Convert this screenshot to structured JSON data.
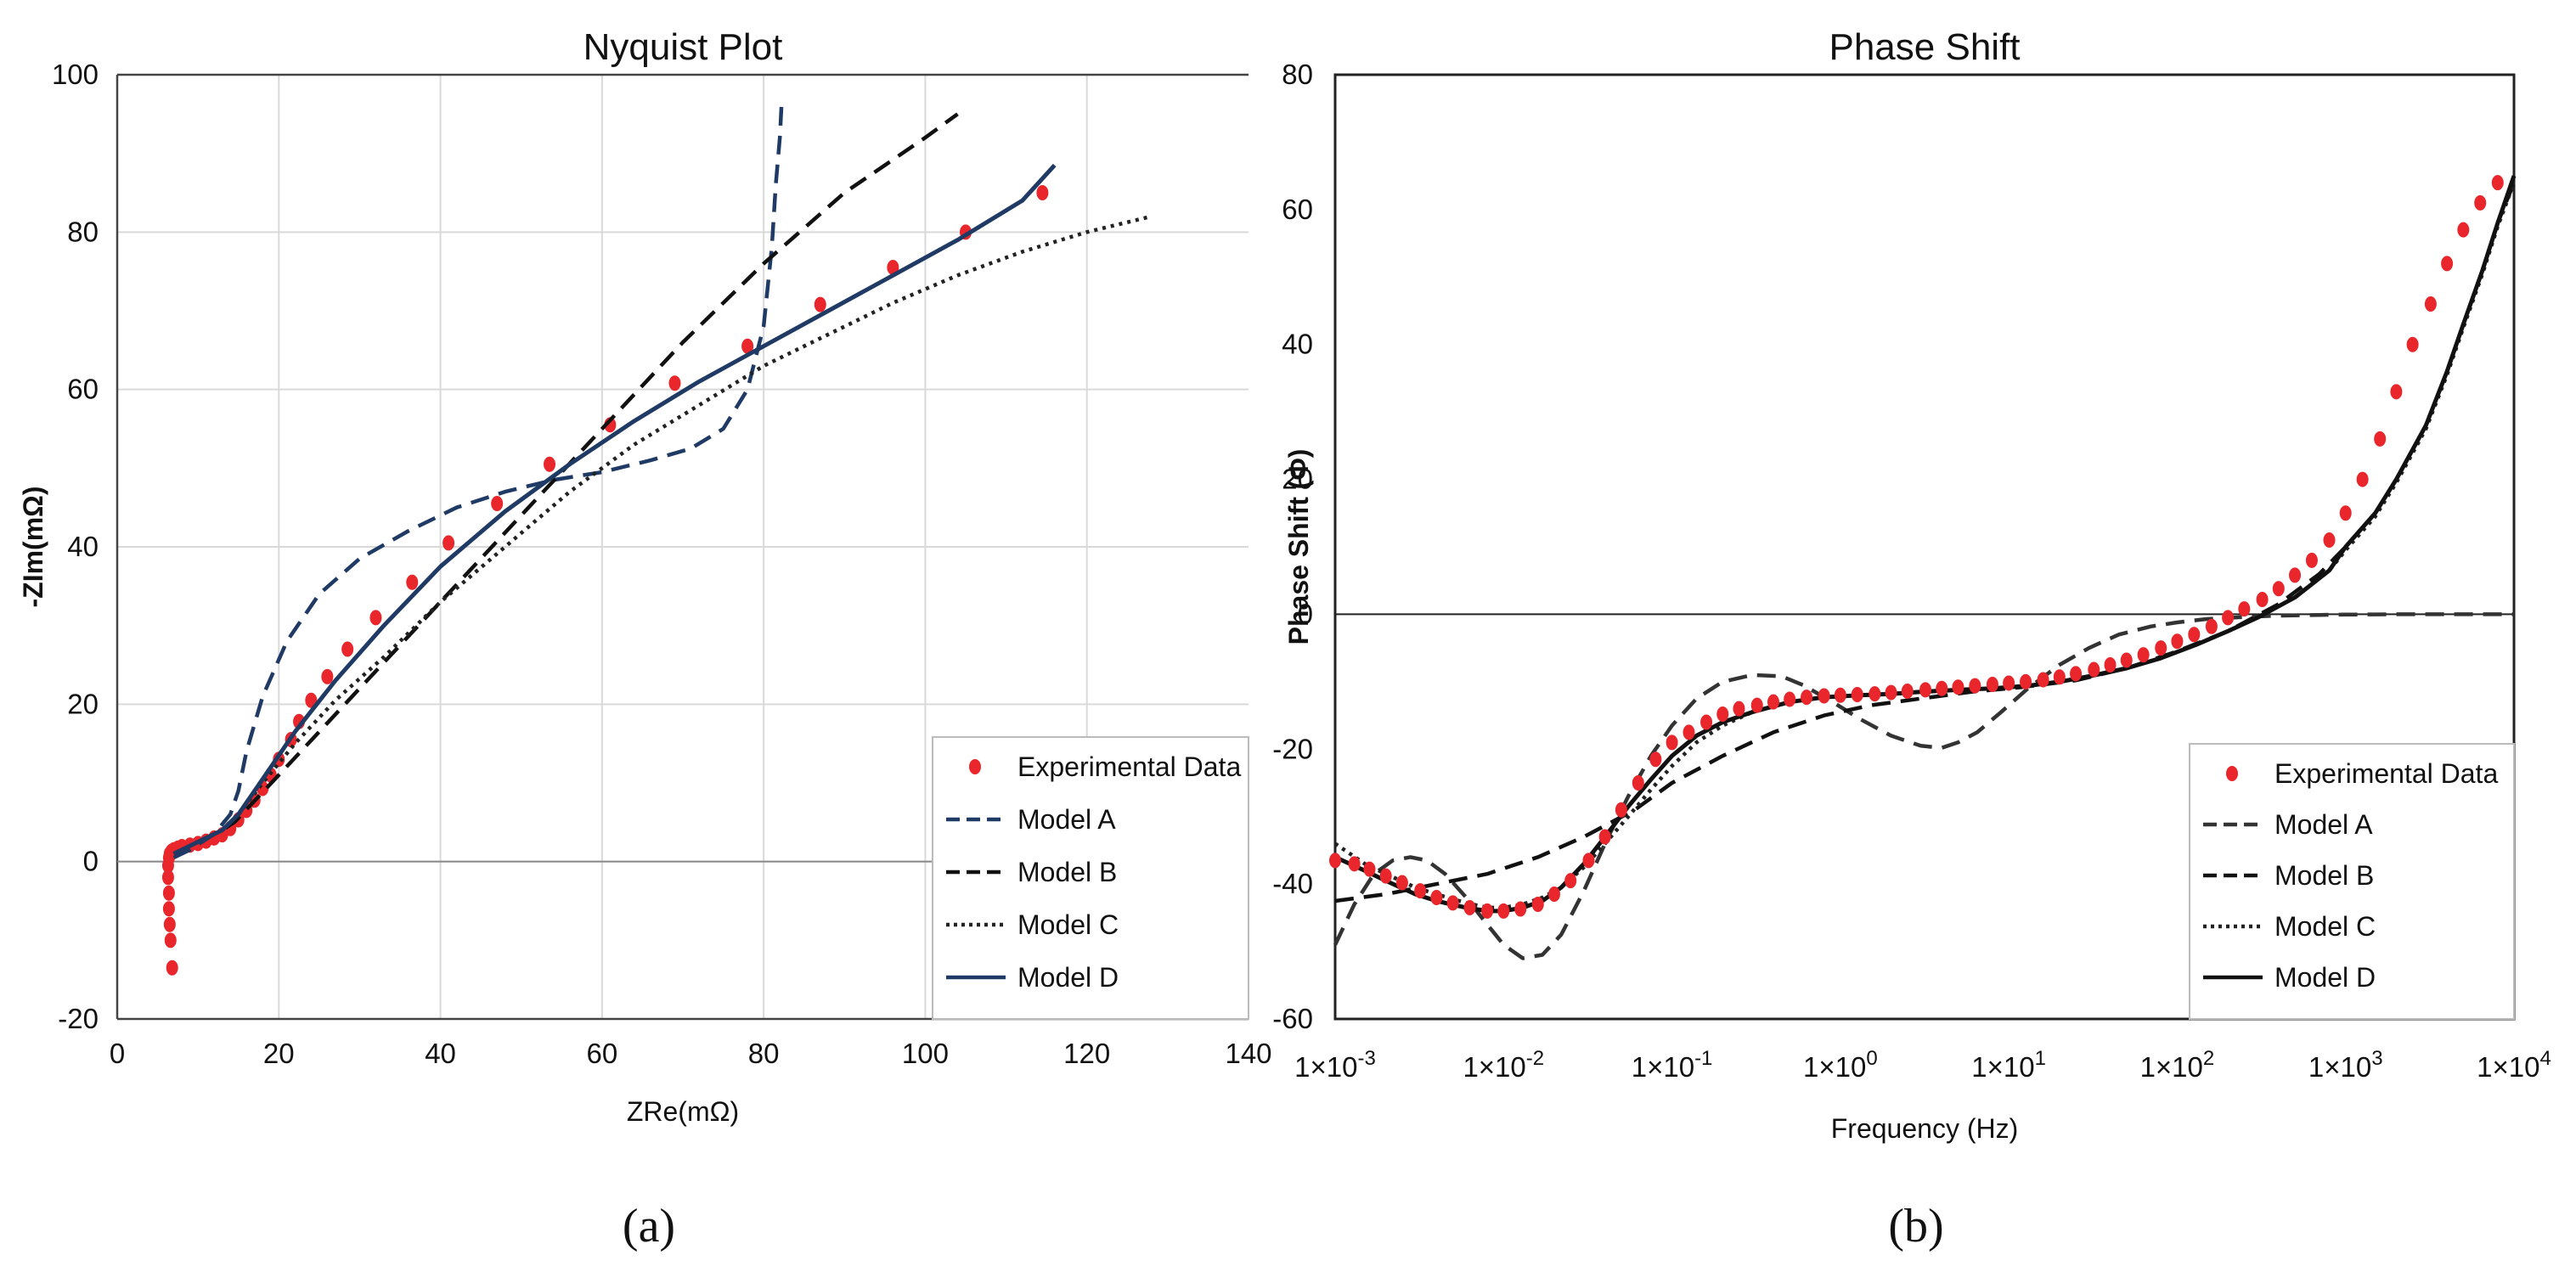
{
  "chart_data": [
    {
      "type": "scatter",
      "title": "Nyquist Plot",
      "xlabel": "ZRe(mΩ)",
      "ylabel": "-ZIm(mΩ)",
      "xlim": [
        0,
        140
      ],
      "ylim": [
        -20,
        100
      ],
      "xticks": [
        "0",
        "20",
        "40",
        "60",
        "80",
        "100",
        "120",
        "140"
      ],
      "yticks": [
        "-20",
        "0",
        "20",
        "40",
        "60",
        "80",
        "100"
      ],
      "grid": true,
      "legend_position": "bottom-right",
      "series": [
        {
          "name": "Experimental Data",
          "style": "markers",
          "color": "#e8262b",
          "x": [
            6.8,
            6.6,
            6.5,
            6.4,
            6.4,
            6.3,
            6.3,
            6.4,
            6.5,
            6.7,
            7,
            7.5,
            8,
            9,
            10,
            11,
            12,
            13,
            14,
            15,
            16,
            17,
            18,
            19,
            20,
            21.5,
            22.5,
            24,
            26,
            28.5,
            32,
            36.5,
            41,
            47,
            53.5,
            61,
            69,
            78,
            87,
            96,
            105,
            114.5
          ],
          "y": [
            -13.5,
            -10,
            -8,
            -6,
            -4,
            -2,
            -0.5,
            0.5,
            1,
            1.3,
            1.5,
            1.7,
            1.9,
            2.1,
            2.3,
            2.6,
            3,
            3.4,
            4.2,
            5.3,
            6.5,
            7.8,
            9.3,
            11,
            13,
            15.5,
            17.8,
            20.5,
            23.5,
            27,
            31,
            35.5,
            40.5,
            45.5,
            50.5,
            55.5,
            60.8,
            65.5,
            70.8,
            75.5,
            80,
            85
          ]
        },
        {
          "name": "Model A",
          "style": "dashed",
          "color": "#1f3a64",
          "x": [
            7,
            9,
            12,
            14,
            15,
            16,
            18,
            21,
            25,
            30,
            36,
            42,
            48,
            54,
            60,
            66,
            71,
            75,
            78,
            80,
            81,
            81.5,
            82,
            82.2
          ],
          "y": [
            0.5,
            1.5,
            3.5,
            6,
            9,
            14,
            21,
            28,
            34,
            38.5,
            42,
            45,
            47,
            48.5,
            49.5,
            51,
            52.5,
            55,
            60,
            68,
            78,
            86,
            92,
            96
          ]
        },
        {
          "name": "Model B",
          "style": "dashed",
          "color": "#111111",
          "x": [
            7,
            10,
            13,
            14.5,
            20,
            30,
            40,
            50,
            60,
            70,
            80,
            90,
            100,
            104
          ],
          "y": [
            1,
            2.5,
            4,
            5,
            11,
            22,
            33,
            44,
            55,
            66,
            76,
            85,
            92,
            95
          ]
        },
        {
          "name": "Model C",
          "style": "dotted",
          "color": "#222222",
          "x": [
            7,
            10,
            13,
            15,
            18,
            22,
            27,
            33,
            40,
            48,
            56,
            64,
            72,
            80,
            88,
            96,
            104,
            112,
            120,
            128
          ],
          "y": [
            1,
            2.5,
            4,
            6,
            10,
            15,
            20.5,
            26,
            33,
            40,
            47,
            53,
            58,
            63,
            67,
            71,
            74.5,
            77.5,
            80,
            82
          ]
        },
        {
          "name": "Model D",
          "style": "solid",
          "color": "#1f3a64",
          "x": [
            7,
            10,
            13,
            15,
            18,
            22,
            27,
            33,
            40,
            48,
            56,
            64,
            72,
            80,
            88,
            96,
            104,
            112,
            116
          ],
          "y": [
            1,
            2.5,
            4,
            6,
            10.5,
            16.5,
            23,
            30,
            37.5,
            44.5,
            50.5,
            56,
            61,
            65.5,
            70,
            74.5,
            79,
            84,
            88.5
          ]
        }
      ]
    },
    {
      "type": "line",
      "title": "Phase Shift",
      "xlabel": "Frequency (Hz)",
      "ylabel": "Phase Shift (Φ)",
      "xscale": "log",
      "xlim": [
        0.001,
        10000
      ],
      "ylim": [
        -60,
        80
      ],
      "xtick_values": [
        0.001,
        0.01,
        0.1,
        1,
        10,
        100,
        1000,
        10000
      ],
      "xtick_base": "1×10",
      "xtick_exponents": [
        "-3",
        "-2",
        "-1",
        "0",
        "1",
        "2",
        "3",
        "4"
      ],
      "yticks": [
        "-60",
        "-40",
        "-20",
        "0",
        "20",
        "40",
        "60",
        "80"
      ],
      "grid": false,
      "legend_position": "bottom-right",
      "series": [
        {
          "name": "Experimental Data",
          "style": "markers",
          "color": "#e8262b",
          "x": [
            0.001,
            0.0013,
            0.0016,
            0.002,
            0.0025,
            0.0032,
            0.004,
            0.005,
            0.0063,
            0.008,
            0.01,
            0.0126,
            0.016,
            0.02,
            0.025,
            0.032,
            0.04,
            0.05,
            0.063,
            0.08,
            0.1,
            0.126,
            0.16,
            0.2,
            0.25,
            0.32,
            0.4,
            0.5,
            0.63,
            0.8,
            1,
            1.26,
            1.6,
            2,
            2.5,
            3.2,
            4,
            5,
            6.3,
            8,
            10,
            12.6,
            16,
            20,
            25,
            32,
            40,
            50,
            63,
            80,
            100,
            126,
            160,
            200,
            250,
            320,
            400,
            500,
            630,
            800,
            1000,
            1260,
            1600,
            2000,
            2500,
            3200,
            4000,
            5000,
            6300,
            8000
          ],
          "y": [
            -36.5,
            -37,
            -37.8,
            -38.8,
            -39.8,
            -41,
            -42,
            -42.8,
            -43.5,
            -44,
            -44,
            -43.7,
            -43,
            -41.5,
            -39.5,
            -36.5,
            -33,
            -29,
            -25,
            -21.5,
            -19,
            -17.5,
            -16,
            -14.8,
            -14,
            -13.5,
            -13,
            -12.6,
            -12.3,
            -12.1,
            -12,
            -11.9,
            -11.8,
            -11.6,
            -11.4,
            -11.2,
            -11,
            -10.8,
            -10.6,
            -10.4,
            -10.2,
            -10,
            -9.7,
            -9.3,
            -8.8,
            -8.2,
            -7.5,
            -6.8,
            -6,
            -5,
            -4,
            -3,
            -1.8,
            -0.5,
            0.8,
            2.2,
            3.8,
            5.8,
            8,
            11,
            15,
            20,
            26,
            33,
            40,
            46,
            52,
            57,
            61,
            64
          ]
        },
        {
          "name": "Model A",
          "style": "dashed",
          "color": "#333333",
          "x": [
            0.001,
            0.0013,
            0.0017,
            0.0022,
            0.0028,
            0.0035,
            0.0045,
            0.006,
            0.008,
            0.01,
            0.013,
            0.017,
            0.022,
            0.03,
            0.04,
            0.055,
            0.075,
            0.1,
            0.14,
            0.2,
            0.3,
            0.45,
            0.6,
            0.9,
            1.3,
            2,
            3,
            4,
            5,
            6.5,
            9,
            13,
            20,
            30,
            45,
            70,
            100,
            150,
            250,
            400,
            700,
            1000,
            2000,
            4000,
            10000
          ],
          "y": [
            -49,
            -43,
            -38.5,
            -36.5,
            -36,
            -36.5,
            -38.5,
            -42,
            -46,
            -49,
            -51,
            -50.5,
            -47.5,
            -41,
            -34,
            -27,
            -21,
            -16.5,
            -12.5,
            -10,
            -9,
            -9.2,
            -10.5,
            -13,
            -15.5,
            -18,
            -19.5,
            -19.8,
            -19,
            -17.5,
            -14.5,
            -11,
            -7.5,
            -5,
            -3,
            -1.8,
            -1.2,
            -0.7,
            -0.4,
            -0.2,
            -0.1,
            -0.05,
            0,
            0,
            0
          ]
        },
        {
          "name": "Model B",
          "style": "dashed",
          "color": "#111111",
          "x": [
            0.001,
            0.002,
            0.004,
            0.008,
            0.016,
            0.03,
            0.06,
            0.1,
            0.2,
            0.4,
            0.8,
            1.5,
            3,
            6,
            12,
            25,
            50,
            100,
            200,
            400,
            700,
            1000,
            1500,
            2000,
            3000,
            4000,
            5000,
            6500,
            8000,
            10000
          ],
          "y": [
            -42.5,
            -41.5,
            -40,
            -38.5,
            -36,
            -33,
            -29,
            -25,
            -21,
            -17.5,
            -15,
            -13.5,
            -12.5,
            -11.5,
            -10.8,
            -9.8,
            -8,
            -5.5,
            -2.5,
            1.5,
            6,
            10,
            15,
            20,
            28,
            36,
            43,
            51,
            58,
            64
          ]
        },
        {
          "name": "Model C",
          "style": "dotted",
          "color": "#222222",
          "x": [
            0.001,
            0.0015,
            0.002,
            0.003,
            0.004,
            0.006,
            0.008,
            0.01,
            0.013,
            0.017,
            0.022,
            0.03,
            0.04,
            0.055,
            0.075,
            0.1,
            0.14,
            0.2,
            0.3,
            0.5,
            0.8,
            1.3,
            2,
            3,
            5,
            8,
            13,
            20,
            30,
            50,
            80,
            130,
            200,
            300,
            500,
            800,
            1000,
            1500,
            2000,
            3000,
            4000,
            5000,
            6500,
            8000,
            10000
          ],
          "y": [
            -34,
            -37,
            -38.5,
            -40.5,
            -41.5,
            -42.8,
            -43.5,
            -43.5,
            -43,
            -42,
            -40.5,
            -37.5,
            -34,
            -30,
            -26,
            -22.5,
            -19,
            -16.5,
            -14.5,
            -13,
            -12.3,
            -12,
            -11.8,
            -11.5,
            -11.2,
            -11,
            -10.6,
            -10,
            -9.2,
            -8,
            -6.5,
            -4.5,
            -2.5,
            -0.5,
            2.5,
            6.5,
            9.5,
            14.5,
            19.5,
            27.5,
            35.5,
            42.5,
            50.5,
            57.5,
            64
          ]
        },
        {
          "name": "Model D",
          "style": "solid",
          "color": "#111111",
          "x": [
            0.001,
            0.0015,
            0.002,
            0.003,
            0.004,
            0.006,
            0.008,
            0.01,
            0.013,
            0.017,
            0.022,
            0.03,
            0.04,
            0.055,
            0.075,
            0.1,
            0.14,
            0.2,
            0.3,
            0.5,
            0.8,
            1.3,
            2,
            3,
            5,
            8,
            13,
            20,
            30,
            50,
            80,
            130,
            200,
            300,
            500,
            800,
            1000,
            1500,
            2000,
            3000,
            4000,
            5000,
            6500,
            8000,
            10000
          ],
          "y": [
            -36,
            -38,
            -39.5,
            -41.5,
            -42.5,
            -43.5,
            -44,
            -44,
            -43.5,
            -42.5,
            -40.5,
            -37,
            -33,
            -28.5,
            -24.5,
            -21,
            -18,
            -16,
            -14.5,
            -13,
            -12.3,
            -12,
            -11.8,
            -11.5,
            -11.2,
            -11,
            -10.6,
            -10,
            -9.2,
            -8,
            -6.5,
            -4.5,
            -2.5,
            -0.5,
            2.5,
            6.5,
            10,
            15,
            20,
            28,
            36,
            43,
            51,
            58,
            65
          ]
        }
      ]
    }
  ],
  "panel_labels": [
    "(a)",
    "(b)"
  ]
}
